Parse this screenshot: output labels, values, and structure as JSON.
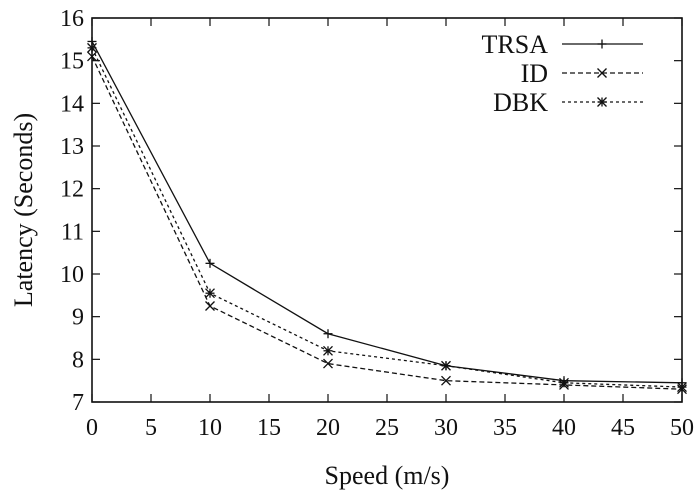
{
  "chart_data": {
    "type": "line",
    "title": "",
    "xlabel": "Speed (m/s)",
    "ylabel": "Latency (Seconds)",
    "xlim": [
      0,
      50
    ],
    "ylim": [
      7,
      16
    ],
    "xticks": [
      0,
      5,
      10,
      15,
      20,
      25,
      30,
      35,
      40,
      45,
      50
    ],
    "yticks": [
      7,
      8,
      9,
      10,
      11,
      12,
      13,
      14,
      15,
      16
    ],
    "grid": false,
    "legend_position": "top-right",
    "x": [
      0,
      10,
      20,
      30,
      40,
      50
    ],
    "series": [
      {
        "name": "TRSA",
        "values": [
          15.45,
          10.25,
          8.6,
          7.85,
          7.5,
          7.45
        ],
        "marker": "+",
        "dash": "solid",
        "color": "#111111"
      },
      {
        "name": "ID",
        "values": [
          15.1,
          9.25,
          7.9,
          7.5,
          7.4,
          7.3
        ],
        "marker": "x",
        "dash": "dashed",
        "color": "#111111"
      },
      {
        "name": "DBK",
        "values": [
          15.3,
          9.55,
          8.2,
          7.85,
          7.45,
          7.35
        ],
        "marker": "*",
        "dash": "dotted",
        "color": "#111111"
      }
    ]
  }
}
